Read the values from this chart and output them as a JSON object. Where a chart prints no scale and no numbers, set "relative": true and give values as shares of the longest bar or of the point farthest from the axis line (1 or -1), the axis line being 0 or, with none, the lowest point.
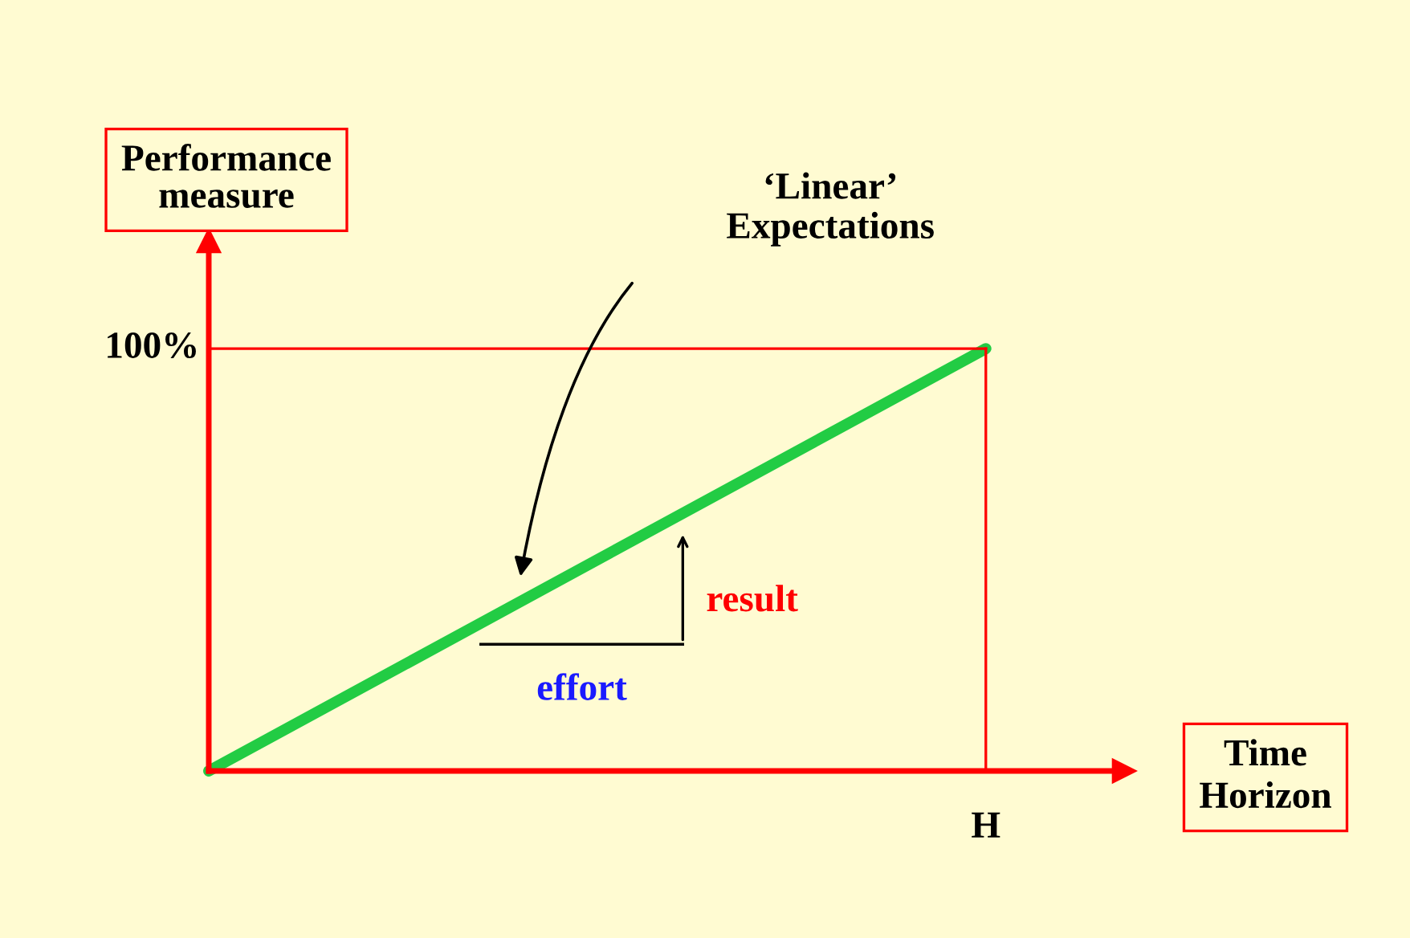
{
  "chart_data": {
    "type": "line",
    "relative": true,
    "xlabel": "Time\nHorizon",
    "ylabel": "Performance\nmeasure",
    "categories": [
      null,
      null
    ],
    "series": [
      {
        "color": "#22cc44",
        "values": [
          0,
          1
        ]
      }
    ],
    "ref_lines": [
      {
        "axis": "y",
        "value": 1,
        "label": "100%",
        "color": "#ff0000"
      }
    ],
    "annotations": [
      "‘Linear’\nExpectations",
      "effort",
      "result",
      "H"
    ],
    "line_style": "solid"
  }
}
